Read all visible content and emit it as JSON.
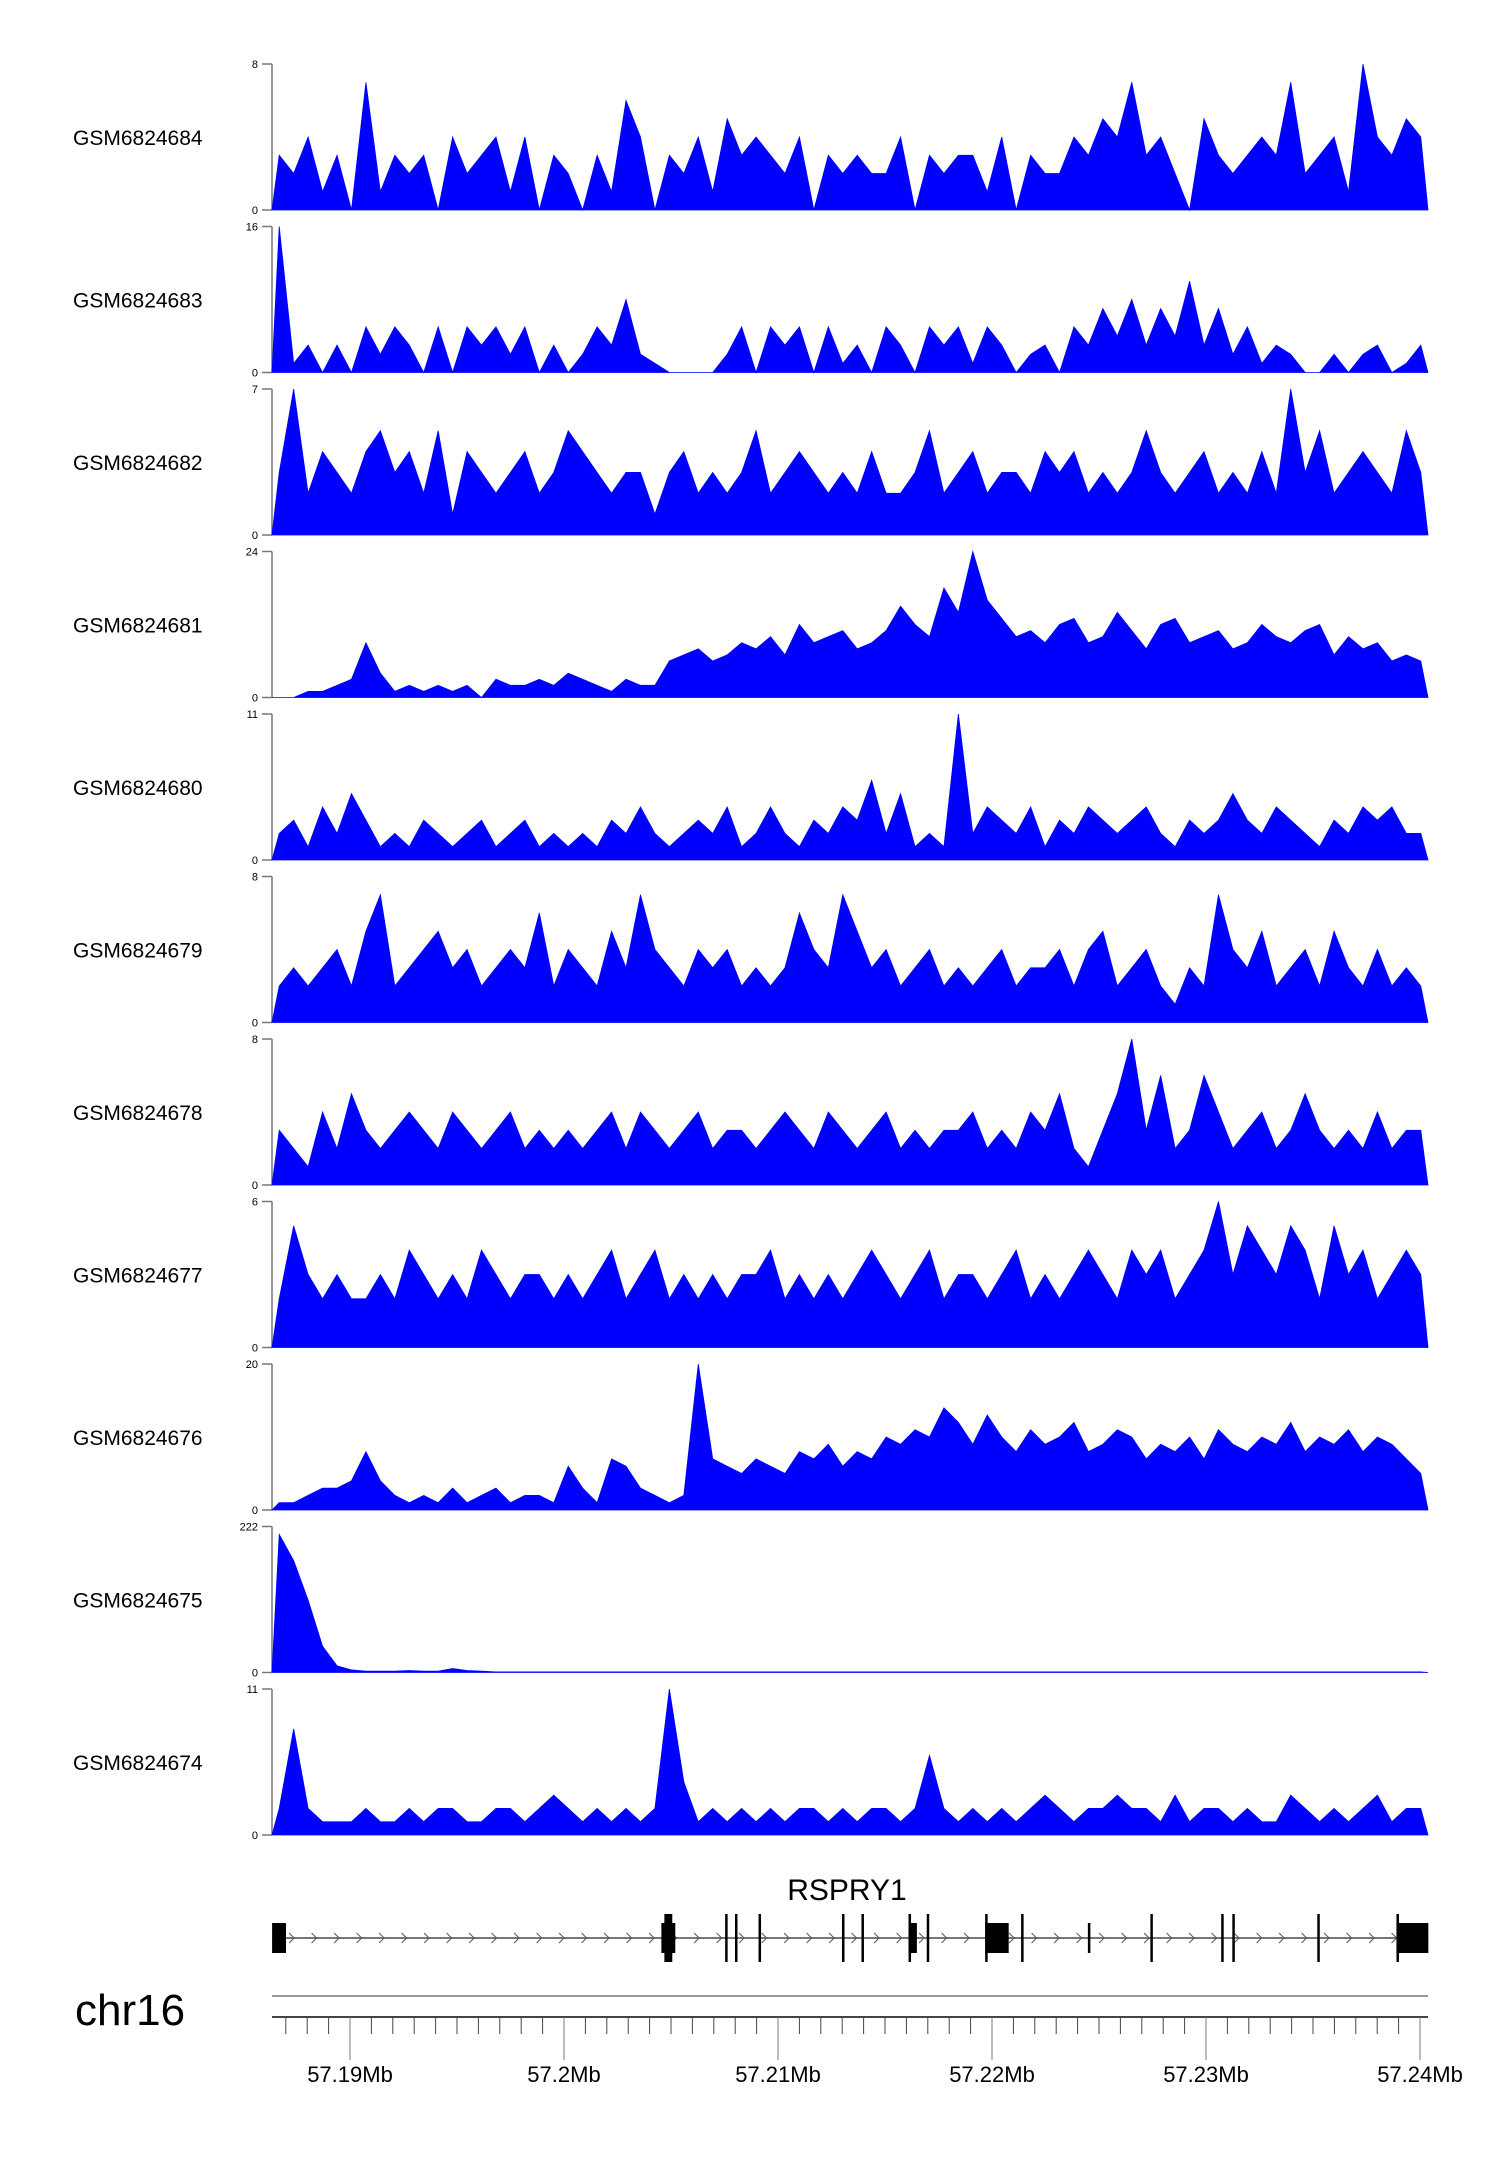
{
  "chart_data": {
    "type": "area",
    "title": "",
    "fill_color": "#0000ff",
    "chromosome": "chr16",
    "xlim_mb": [
      57.18636,
      57.24039
    ],
    "x_ticks": [
      "57.19Mb",
      "57.2Mb",
      "57.21Mb",
      "57.22Mb",
      "57.23Mb",
      "57.24Mb"
    ],
    "x_tick_values_mb": [
      57.19,
      57.2,
      57.21,
      57.22,
      57.23,
      57.24
    ],
    "tracks": [
      {
        "name": "GSM6824684",
        "ymin": "0",
        "ymax": "8",
        "values": [
          3,
          2,
          4,
          1,
          3,
          0,
          7,
          1,
          3,
          2,
          3,
          0,
          4,
          2,
          3,
          4,
          1,
          4,
          0,
          3,
          2,
          0,
          3,
          1,
          6,
          4,
          0,
          3,
          2,
          4,
          1,
          5,
          3,
          4,
          3,
          2,
          4,
          0,
          3,
          2,
          3,
          2,
          2,
          4,
          0,
          3,
          2,
          3,
          3,
          1,
          4,
          0,
          3,
          2,
          2,
          4,
          3,
          5,
          4,
          7,
          3,
          4,
          2,
          0,
          5,
          3,
          2,
          3,
          4,
          3,
          7,
          2,
          3,
          4,
          1,
          8,
          4,
          3,
          5,
          4
        ]
      },
      {
        "name": "GSM6824683",
        "ymin": "0",
        "ymax": "16",
        "values": [
          16,
          1,
          3,
          0,
          3,
          0,
          5,
          2,
          5,
          3,
          0,
          5,
          0,
          5,
          3,
          5,
          2,
          5,
          0,
          3,
          0,
          2,
          5,
          3,
          8,
          2,
          1,
          0,
          0,
          0,
          0,
          2,
          5,
          0,
          5,
          3,
          5,
          0,
          5,
          1,
          3,
          0,
          5,
          3,
          0,
          5,
          3,
          5,
          1,
          5,
          3,
          0,
          2,
          3,
          0,
          5,
          3,
          7,
          4,
          8,
          3,
          7,
          4,
          10,
          3,
          7,
          2,
          5,
          1,
          3,
          2,
          0,
          0,
          2,
          0,
          2,
          3,
          0,
          1,
          3
        ]
      },
      {
        "name": "GSM6824682",
        "ymin": "0",
        "ymax": "7",
        "values": [
          3,
          7,
          2,
          4,
          3,
          2,
          4,
          5,
          3,
          4,
          2,
          5,
          1,
          4,
          3,
          2,
          3,
          4,
          2,
          3,
          5,
          4,
          3,
          2,
          3,
          3,
          1,
          3,
          4,
          2,
          3,
          2,
          3,
          5,
          2,
          3,
          4,
          3,
          2,
          3,
          2,
          4,
          2,
          2,
          3,
          5,
          2,
          3,
          4,
          2,
          3,
          3,
          2,
          4,
          3,
          4,
          2,
          3,
          2,
          3,
          5,
          3,
          2,
          3,
          4,
          2,
          3,
          2,
          4,
          2,
          7,
          3,
          5,
          2,
          3,
          4,
          3,
          2,
          5,
          3
        ]
      },
      {
        "name": "GSM6824681",
        "ymin": "0",
        "ymax": "24",
        "values": [
          0,
          0,
          1,
          1,
          2,
          3,
          9,
          4,
          1,
          2,
          1,
          2,
          1,
          2,
          0,
          3,
          2,
          2,
          3,
          2,
          4,
          3,
          2,
          1,
          3,
          2,
          2,
          6,
          7,
          8,
          6,
          7,
          9,
          8,
          10,
          7,
          12,
          9,
          10,
          11,
          8,
          9,
          11,
          15,
          12,
          10,
          18,
          14,
          24,
          16,
          13,
          10,
          11,
          9,
          12,
          13,
          9,
          10,
          14,
          11,
          8,
          12,
          13,
          9,
          10,
          11,
          8,
          9,
          12,
          10,
          9,
          11,
          12,
          7,
          10,
          8,
          9,
          6,
          7,
          6
        ]
      },
      {
        "name": "GSM6824680",
        "ymin": "0",
        "ymax": "11",
        "values": [
          2,
          3,
          1,
          4,
          2,
          5,
          3,
          1,
          2,
          1,
          3,
          2,
          1,
          2,
          3,
          1,
          2,
          3,
          1,
          2,
          1,
          2,
          1,
          3,
          2,
          4,
          2,
          1,
          2,
          3,
          2,
          4,
          1,
          2,
          4,
          2,
          1,
          3,
          2,
          4,
          3,
          6,
          2,
          5,
          1,
          2,
          1,
          11,
          2,
          4,
          3,
          2,
          4,
          1,
          3,
          2,
          4,
          3,
          2,
          3,
          4,
          2,
          1,
          3,
          2,
          3,
          5,
          3,
          2,
          4,
          3,
          2,
          1,
          3,
          2,
          4,
          3,
          4,
          2,
          2
        ]
      },
      {
        "name": "GSM6824679",
        "ymin": "0",
        "ymax": "8",
        "values": [
          2,
          3,
          2,
          3,
          4,
          2,
          5,
          7,
          2,
          3,
          4,
          5,
          3,
          4,
          2,
          3,
          4,
          3,
          6,
          2,
          4,
          3,
          2,
          5,
          3,
          7,
          4,
          3,
          2,
          4,
          3,
          4,
          2,
          3,
          2,
          3,
          6,
          4,
          3,
          7,
          5,
          3,
          4,
          2,
          3,
          4,
          2,
          3,
          2,
          3,
          4,
          2,
          3,
          3,
          4,
          2,
          4,
          5,
          2,
          3,
          4,
          2,
          1,
          3,
          2,
          7,
          4,
          3,
          5,
          2,
          3,
          4,
          2,
          5,
          3,
          2,
          4,
          2,
          3,
          2
        ]
      },
      {
        "name": "GSM6824678",
        "ymin": "0",
        "ymax": "8",
        "values": [
          3,
          2,
          1,
          4,
          2,
          5,
          3,
          2,
          3,
          4,
          3,
          2,
          4,
          3,
          2,
          3,
          4,
          2,
          3,
          2,
          3,
          2,
          3,
          4,
          2,
          4,
          3,
          2,
          3,
          4,
          2,
          3,
          3,
          2,
          3,
          4,
          3,
          2,
          4,
          3,
          2,
          3,
          4,
          2,
          3,
          2,
          3,
          3,
          4,
          2,
          3,
          2,
          4,
          3,
          5,
          2,
          1,
          3,
          5,
          8,
          3,
          6,
          2,
          3,
          6,
          4,
          2,
          3,
          4,
          2,
          3,
          5,
          3,
          2,
          3,
          2,
          4,
          2,
          3,
          3
        ]
      },
      {
        "name": "GSM6824677",
        "ymin": "0",
        "ymax": "6",
        "values": [
          2,
          5,
          3,
          2,
          3,
          2,
          2,
          3,
          2,
          4,
          3,
          2,
          3,
          2,
          4,
          3,
          2,
          3,
          3,
          2,
          3,
          2,
          3,
          4,
          2,
          3,
          4,
          2,
          3,
          2,
          3,
          2,
          3,
          3,
          4,
          2,
          3,
          2,
          3,
          2,
          3,
          4,
          3,
          2,
          3,
          4,
          2,
          3,
          3,
          2,
          3,
          4,
          2,
          3,
          2,
          3,
          4,
          3,
          2,
          4,
          3,
          4,
          2,
          3,
          4,
          6,
          3,
          5,
          4,
          3,
          5,
          4,
          2,
          5,
          3,
          4,
          2,
          3,
          4,
          3
        ]
      },
      {
        "name": "GSM6824676",
        "ymin": "0",
        "ymax": "20",
        "values": [
          1,
          1,
          2,
          3,
          3,
          4,
          8,
          4,
          2,
          1,
          2,
          1,
          3,
          1,
          2,
          3,
          1,
          2,
          2,
          1,
          6,
          3,
          1,
          7,
          6,
          3,
          2,
          1,
          2,
          20,
          7,
          6,
          5,
          7,
          6,
          5,
          8,
          7,
          9,
          6,
          8,
          7,
          10,
          9,
          11,
          10,
          14,
          12,
          9,
          13,
          10,
          8,
          11,
          9,
          10,
          12,
          8,
          9,
          11,
          10,
          7,
          9,
          8,
          10,
          7,
          11,
          9,
          8,
          10,
          9,
          12,
          8,
          10,
          9,
          11,
          8,
          10,
          9,
          7,
          5
        ]
      },
      {
        "name": "GSM6824675",
        "ymin": "0",
        "ymax": "222",
        "values": [
          210,
          170,
          110,
          40,
          10,
          4,
          2,
          2,
          2,
          3,
          2,
          2,
          6,
          3,
          2,
          1,
          1,
          1,
          1,
          1,
          1,
          1,
          1,
          1,
          1,
          1,
          1,
          1,
          1,
          1,
          1,
          1,
          1,
          1,
          1,
          1,
          1,
          1,
          1,
          1,
          1,
          1,
          1,
          1,
          1,
          1,
          1,
          1,
          1,
          1,
          1,
          1,
          1,
          1,
          1,
          1,
          1,
          1,
          1,
          1,
          1,
          1,
          1,
          1,
          1,
          1,
          1,
          1,
          1,
          1,
          1,
          1,
          1,
          1,
          1,
          1,
          1,
          1,
          1,
          1
        ]
      },
      {
        "name": "GSM6824674",
        "ymin": "0",
        "ymax": "11",
        "values": [
          2,
          8,
          2,
          1,
          1,
          1,
          2,
          1,
          1,
          2,
          1,
          2,
          2,
          1,
          1,
          2,
          2,
          1,
          2,
          3,
          2,
          1,
          2,
          1,
          2,
          1,
          2,
          11,
          4,
          1,
          2,
          1,
          2,
          1,
          2,
          1,
          2,
          2,
          1,
          2,
          1,
          2,
          2,
          1,
          2,
          6,
          2,
          1,
          2,
          1,
          2,
          1,
          2,
          3,
          2,
          1,
          2,
          2,
          3,
          2,
          2,
          1,
          3,
          1,
          2,
          2,
          1,
          2,
          1,
          1,
          3,
          2,
          1,
          2,
          1,
          2,
          3,
          1,
          2,
          2
        ]
      }
    ],
    "gene": {
      "name": "RSPRY1",
      "strand": "+",
      "start_mb": 57.18636,
      "end_mb": 57.24039,
      "exons_mb": [
        [
          57.18636,
          57.18701
        ],
        [
          57.20455,
          57.2052
        ],
        [
          57.20753,
          57.20763
        ],
        [
          57.20799,
          57.20809
        ],
        [
          57.20909,
          57.20919
        ],
        [
          57.21299,
          57.21309
        ],
        [
          57.2139,
          57.214
        ],
        [
          57.2161,
          57.21649
        ],
        [
          57.21695,
          57.21705
        ],
        [
          57.21968,
          57.22078
        ],
        [
          57.22136,
          57.22146
        ],
        [
          57.22448,
          57.22455
        ],
        [
          57.2274,
          57.2275
        ],
        [
          57.23071,
          57.23081
        ],
        [
          57.23123,
          57.23133
        ],
        [
          57.2352,
          57.2353
        ],
        [
          57.2389,
          57.24039
        ]
      ]
    }
  }
}
